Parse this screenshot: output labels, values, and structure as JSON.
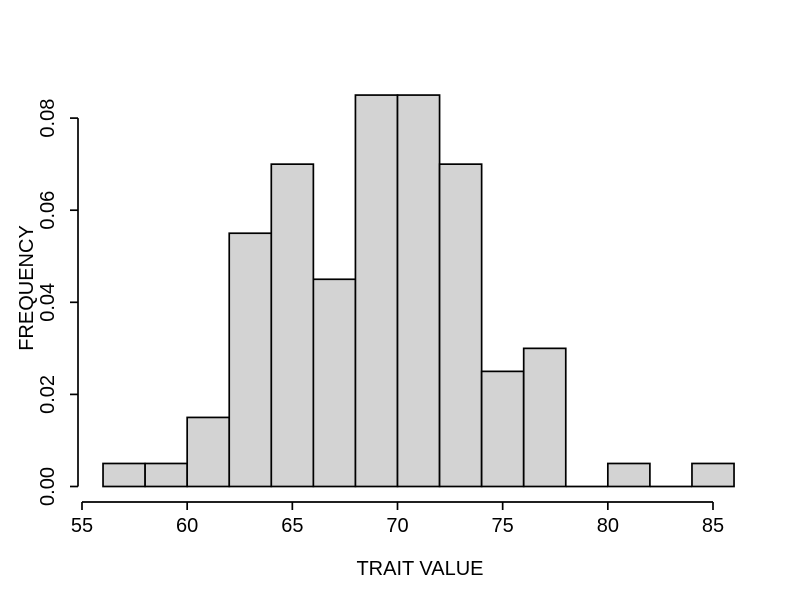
{
  "page": {
    "background": "#ffffff"
  },
  "chart_data": {
    "type": "bar",
    "subtype": "histogram",
    "title": "",
    "xlabel": "TRAIT VALUE",
    "ylabel": "FREQUENCY",
    "bin_edges": [
      56,
      58,
      60,
      62,
      64,
      66,
      68,
      70,
      72,
      74,
      76,
      78,
      80,
      82,
      84,
      86
    ],
    "values": [
      0.005,
      0.005,
      0.015,
      0.055,
      0.07,
      0.045,
      0.085,
      0.085,
      0.07,
      0.025,
      0.03,
      0,
      0.005,
      0,
      0.005
    ],
    "x_ticks": [
      {
        "value": 55,
        "label": "55"
      },
      {
        "value": 60,
        "label": "60"
      },
      {
        "value": 65,
        "label": "65"
      },
      {
        "value": 70,
        "label": "70"
      },
      {
        "value": 75,
        "label": "75"
      },
      {
        "value": 80,
        "label": "80"
      },
      {
        "value": 85,
        "label": "85"
      }
    ],
    "y_ticks": [
      {
        "value": 0.0,
        "label": "0.00"
      },
      {
        "value": 0.02,
        "label": "0.02"
      },
      {
        "value": 0.04,
        "label": "0.04"
      },
      {
        "value": 0.06,
        "label": "0.06"
      },
      {
        "value": 0.08,
        "label": "0.08"
      }
    ],
    "xlim": [
      55,
      85
    ],
    "ylim": [
      0,
      0.08
    ],
    "grid": false,
    "legend_position": "none",
    "colors": {
      "bar_fill": "#d3d3d3",
      "bar_border": "#000000",
      "axis": "#000000",
      "text": "#000000"
    }
  }
}
